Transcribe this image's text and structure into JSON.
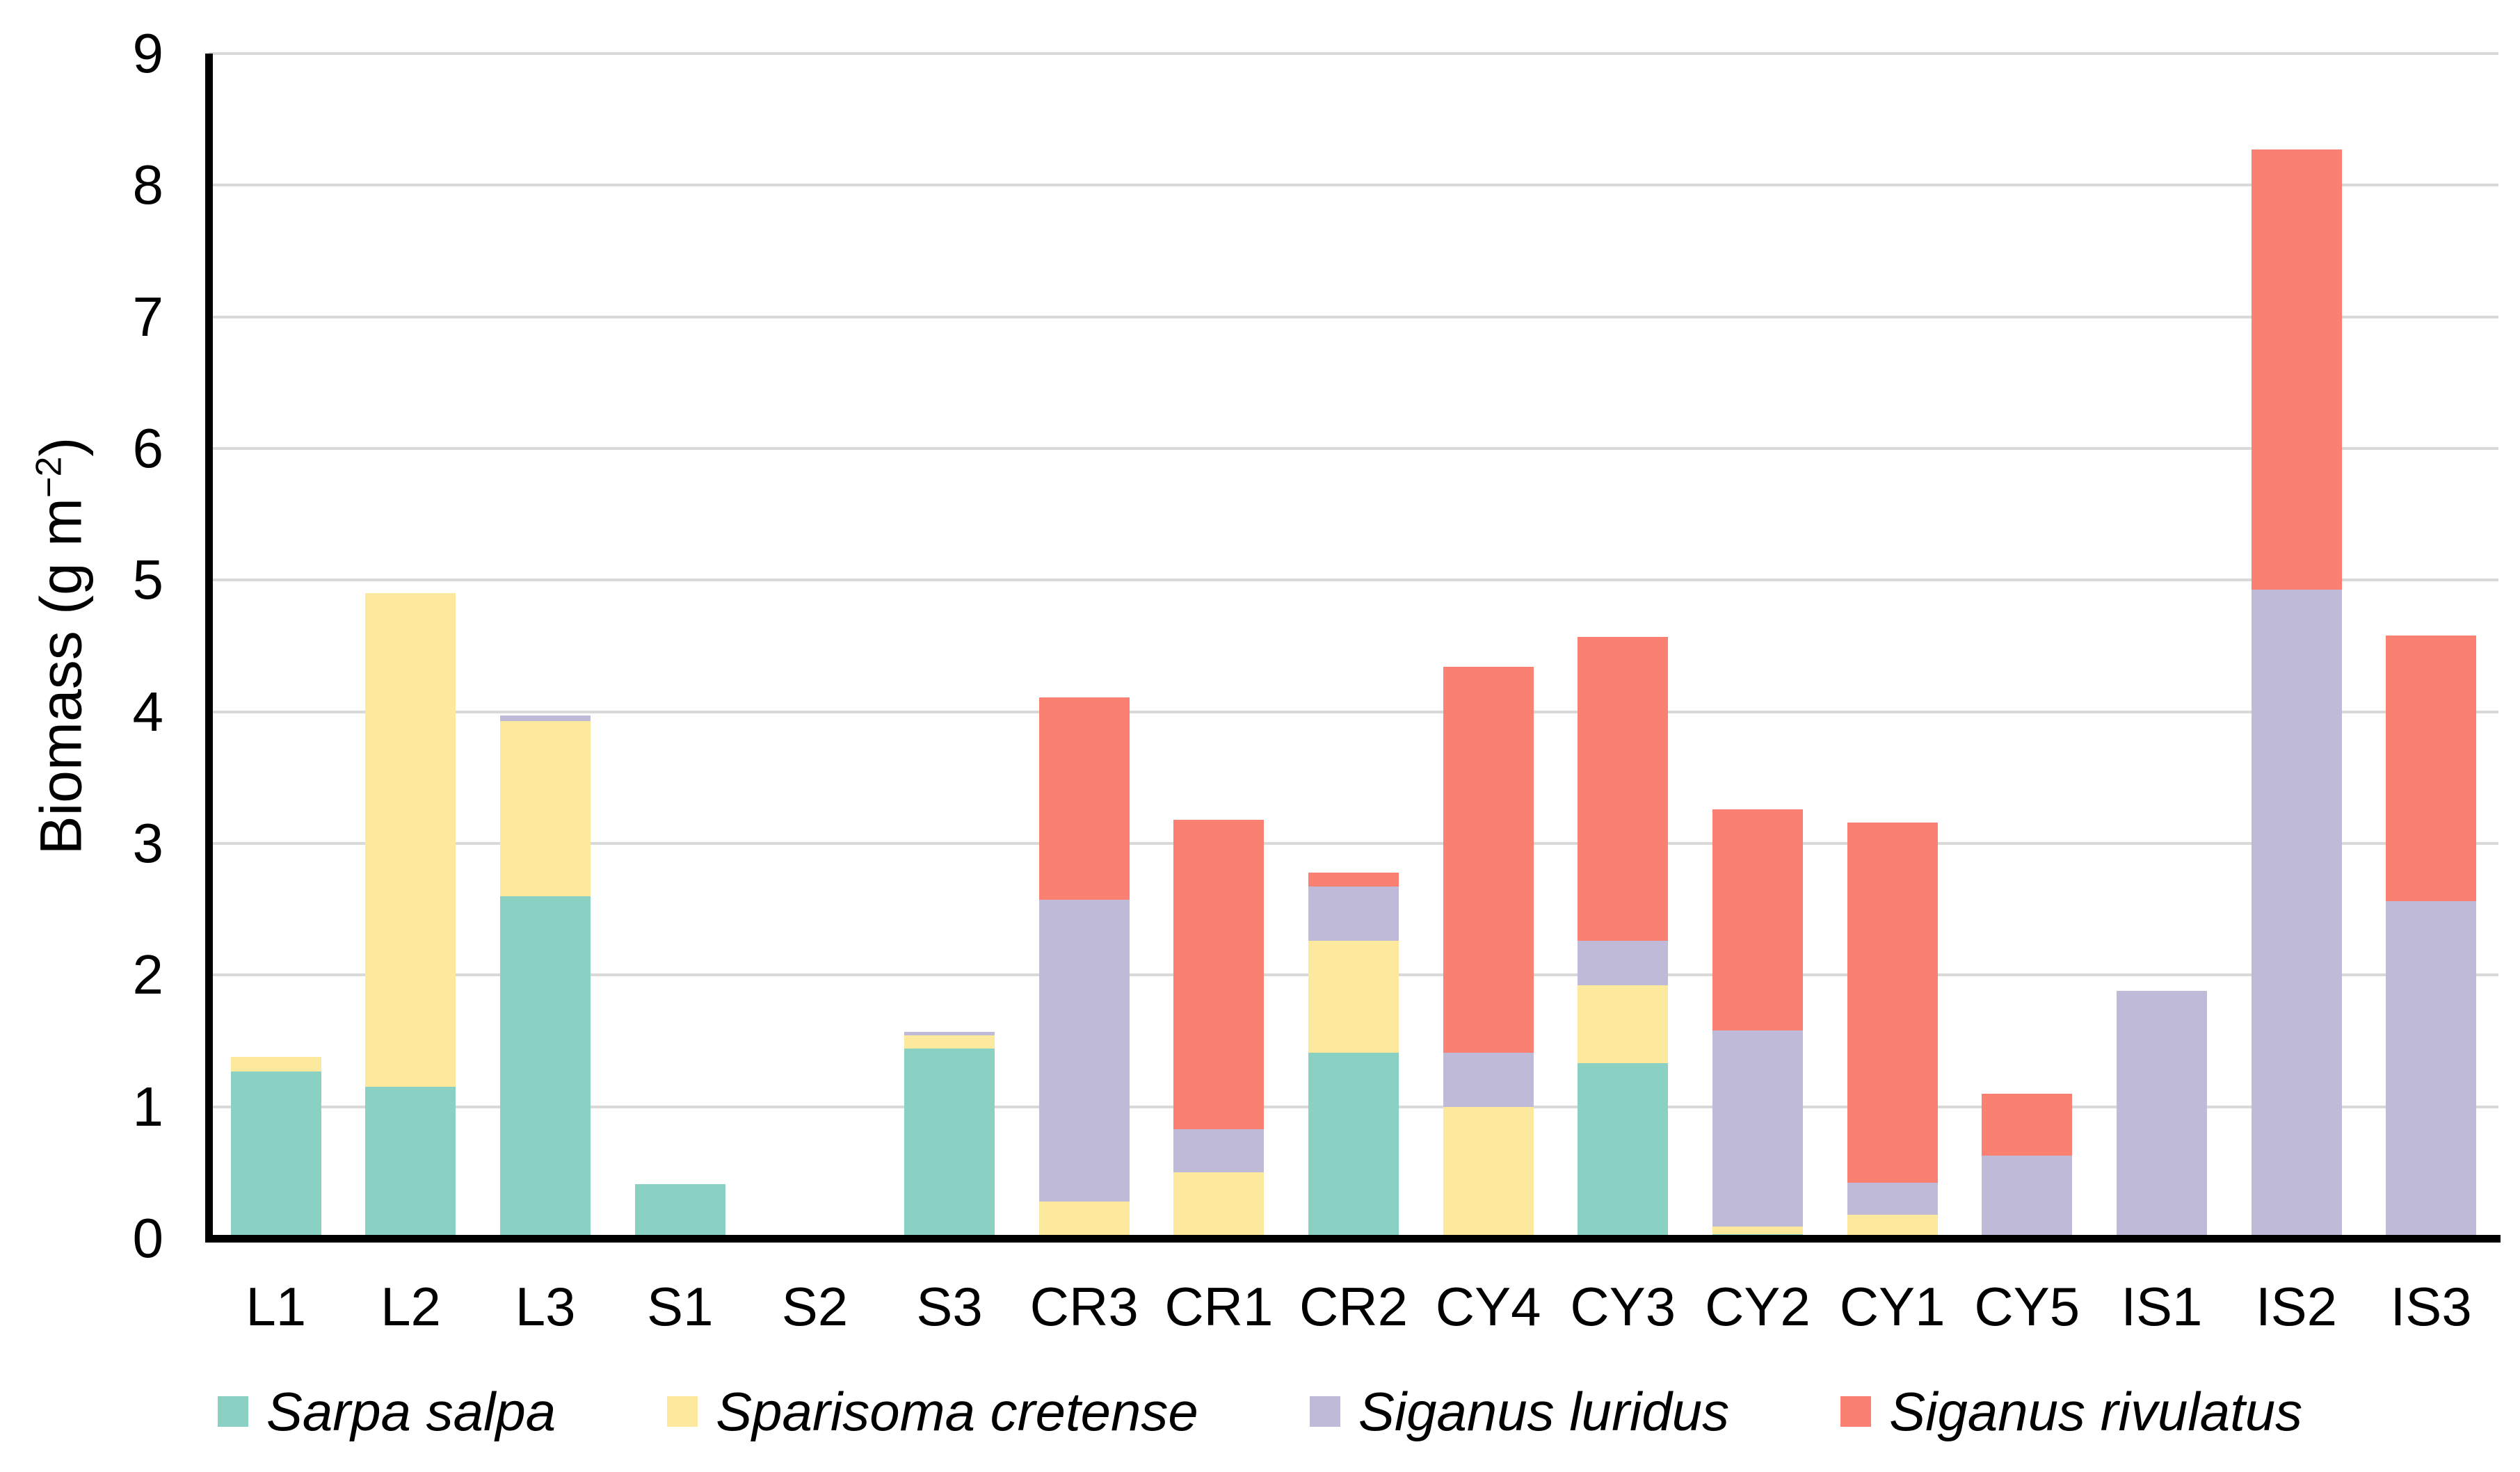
{
  "figure": {
    "background": "#FFFFFF",
    "axis_color": "#000000",
    "gridline_color": "#D9D9D9",
    "text_color": "#000000"
  },
  "y_axis": {
    "title_prefix": "Biomass (g m",
    "title_sup": "−2",
    "title_suffix": ")"
  },
  "chart_data": {
    "type": "bar",
    "stacked": true,
    "title": "",
    "xlabel": "",
    "ylabel": "Biomass (g m^-2)",
    "ylim": [
      0,
      9
    ],
    "yticks": [
      0,
      1,
      2,
      3,
      4,
      5,
      6,
      7,
      8,
      9
    ],
    "grid": true,
    "legend_position": "bottom",
    "categories": [
      "L1",
      "L2",
      "L3",
      "S1",
      "S2",
      "S3",
      "CR3",
      "CR1",
      "CR2",
      "CY4",
      "CY3",
      "CY2",
      "CY1",
      "CY5",
      "IS1",
      "IS2",
      "IS3"
    ],
    "series": [
      {
        "name": "Sarpa salpa",
        "color": "#8BD1C3",
        "values": [
          1.27,
          1.15,
          2.6,
          0.41,
          0,
          1.44,
          0,
          0,
          1.41,
          0,
          1.33,
          0.03,
          0,
          0,
          0,
          0,
          0
        ]
      },
      {
        "name": "Sparisoma cretense",
        "color": "#FCE99E",
        "values": [
          0.11,
          3.75,
          1.33,
          0,
          0,
          0.1,
          0.28,
          0.5,
          0.85,
          1.0,
          0.59,
          0.06,
          0.18,
          0,
          0,
          0,
          0
        ]
      },
      {
        "name": "Siganus luridus",
        "color": "#BEBAD8",
        "values": [
          0,
          0,
          0.04,
          0,
          0,
          0.03,
          2.29,
          0.33,
          0.41,
          0.41,
          0.34,
          1.49,
          0.24,
          0.63,
          1.88,
          4.93,
          2.56
        ]
      },
      {
        "name": "Siganus rivulatus",
        "color": "#FA8072",
        "values": [
          0,
          0,
          0,
          0,
          0,
          0,
          1.54,
          2.35,
          0.11,
          2.93,
          2.31,
          1.68,
          2.74,
          0.47,
          0,
          3.34,
          2.02
        ]
      }
    ]
  }
}
